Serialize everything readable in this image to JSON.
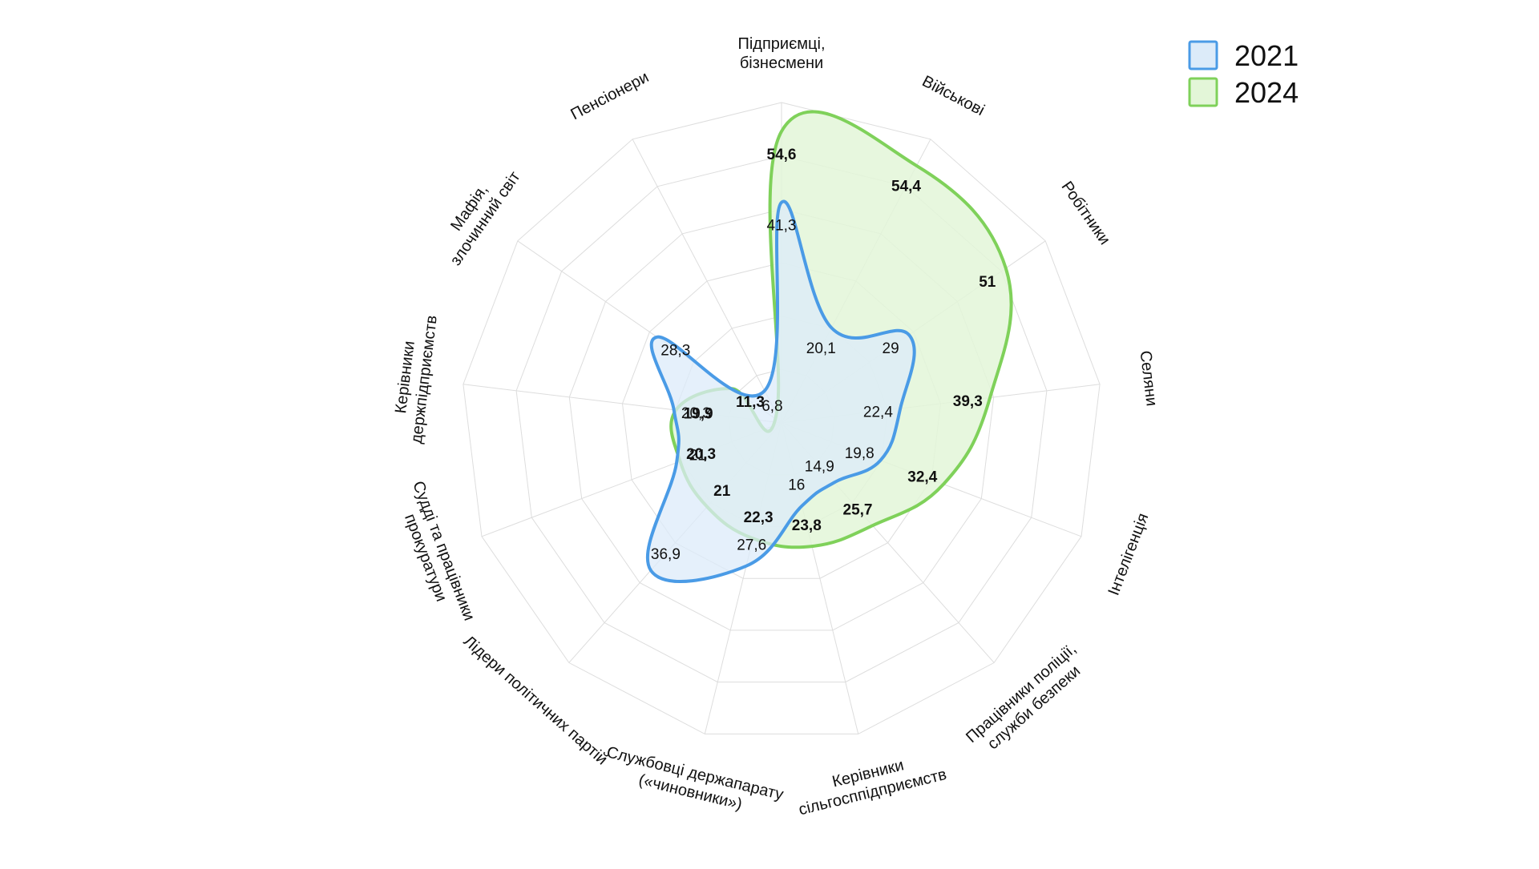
{
  "chart_data": {
    "type": "radar",
    "title": "",
    "categories": [
      [
        "Підприємці,",
        "бізнесмени"
      ],
      [
        "Військові"
      ],
      [
        "Робітники"
      ],
      [
        "Селяни"
      ],
      [
        "Інтелігенція"
      ],
      [
        "Працівники поліції,",
        "служби безпеки"
      ],
      [
        "Керівники",
        "сільгосппідприємств"
      ],
      [
        "Службовці держапарату",
        "(«чиновники»)"
      ],
      [
        "Лідери політичних партій"
      ],
      [
        "Судді та працівники",
        "прокуратури"
      ],
      [
        "Керівники",
        "держпідприємств"
      ],
      [
        "Мафія,",
        "злочинний світ"
      ],
      [
        "Пенсіонери"
      ]
    ],
    "series": [
      {
        "name": "2021",
        "values": [
          41.3,
          20.1,
          29,
          22.4,
          19.8,
          14.9,
          16,
          27.6,
          36.9,
          21,
          20.3,
          28.3,
          6.8
        ],
        "labels": [
          "41,3",
          "20,1",
          "29",
          "22,4",
          "19,8",
          "14,9",
          "16",
          "27,6",
          "36,9",
          "21",
          "20,3",
          "28,3",
          "6,8"
        ],
        "stroke": "#4a9be6",
        "fill": "#dcebf9"
      },
      {
        "name": "2024",
        "values": [
          54.6,
          54.4,
          51,
          39.3,
          32.4,
          25.7,
          23.8,
          22.3,
          21,
          20.3,
          19.9,
          11.3,
          2
        ],
        "labels": [
          "54,6",
          "54,4",
          "51",
          "39,3",
          "32,4",
          "25,7",
          "23,8",
          "22,3",
          "21",
          "20,3",
          "19,9",
          "11,3",
          ""
        ],
        "stroke": "#7fd15a",
        "fill": "#e3f6d8"
      }
    ],
    "rlim": [
      0,
      60
    ],
    "grid": true,
    "legend_position": "top-right"
  }
}
